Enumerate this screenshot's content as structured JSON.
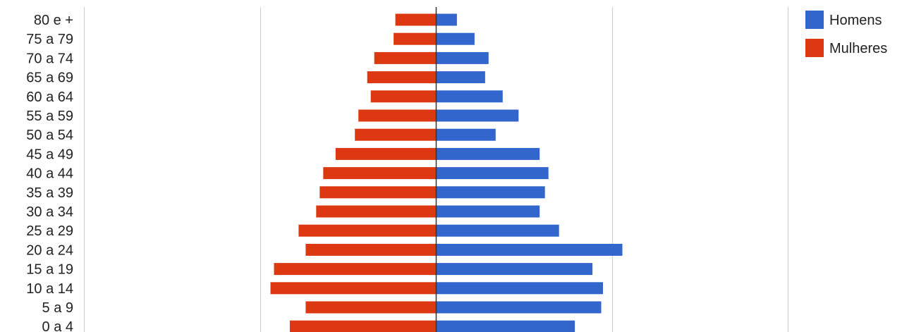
{
  "chart_data": {
    "type": "bar",
    "orientation": "horizontal",
    "layout": "population-pyramid",
    "categories": [
      "80 e +",
      "75 a 79",
      "70 a 74",
      "65 a 69",
      "60 a 64",
      "55 a 59",
      "50 a 54",
      "45 a 49",
      "40 a 44",
      "35 a 39",
      "30 a 34",
      "25 a 29",
      "20 a 24",
      "15 a 19",
      "10 a 14",
      "5 a 9",
      "0 a 4"
    ],
    "series": [
      {
        "name": "Homens",
        "color": "#3366cc",
        "values": [
          12,
          22,
          30,
          28,
          38,
          47,
          34,
          59,
          64,
          62,
          59,
          70,
          106,
          89,
          95,
          94,
          79
        ]
      },
      {
        "name": "Mulheres",
        "color": "#dc3912",
        "values": [
          -23,
          -24,
          -35,
          -39,
          -37,
          -44,
          -46,
          -57,
          -64,
          -66,
          -68,
          -78,
          -74,
          -92,
          -94,
          -74,
          -83
        ]
      }
    ],
    "xlim": [
      -200,
      200
    ],
    "gridlines_at": [
      -200,
      -100,
      0,
      100,
      200
    ],
    "x_tick_labels_visible": false,
    "grid": true,
    "legend_position": "right",
    "title": "",
    "xlabel": "",
    "ylabel": ""
  },
  "legend": {
    "items": [
      {
        "label": "Homens",
        "color": "#3366cc"
      },
      {
        "label": "Mulheres",
        "color": "#dc3912"
      }
    ]
  }
}
